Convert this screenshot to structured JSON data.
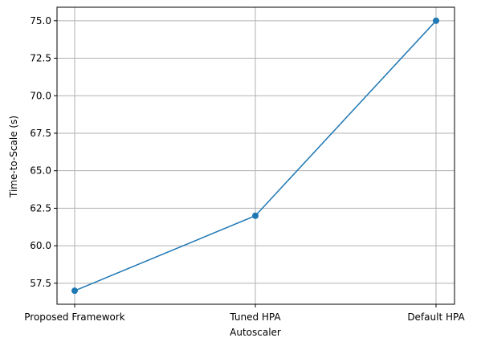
{
  "chart_data": {
    "type": "line",
    "title": "",
    "xlabel": "Autoscaler",
    "ylabel": "Time-to-Scale (s)",
    "categories": [
      "Proposed Framework",
      "Tuned HPA",
      "Default HPA"
    ],
    "series": [
      {
        "values": [
          57,
          62,
          75
        ],
        "color": "#1f77b4",
        "marker": "circle"
      }
    ],
    "yticks": [
      "57.5",
      "60.0",
      "62.5",
      "65.0",
      "67.5",
      "70.0",
      "72.5",
      "75.0"
    ],
    "ylim": [
      56.1,
      75.9
    ],
    "grid": true
  }
}
